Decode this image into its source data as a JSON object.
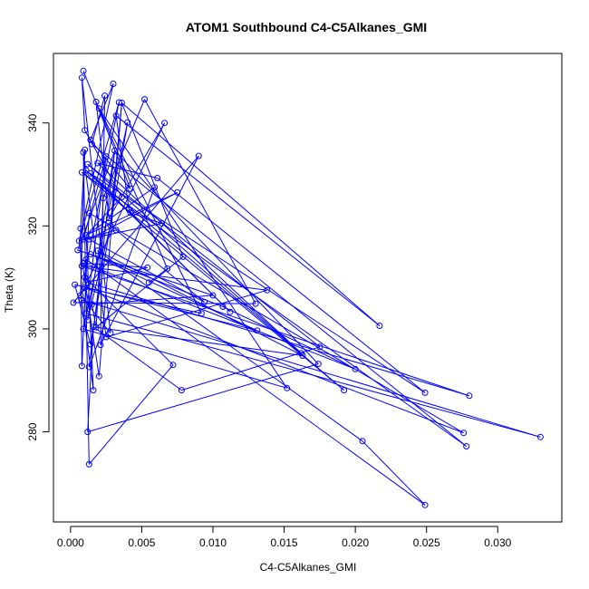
{
  "chart_data": {
    "type": "line",
    "title": "ATOM1 Southbound C4-C5Alkanes_GMI",
    "xlabel": "C4-C5Alkanes_GMI",
    "ylabel": "Theta (K)",
    "xlim": [
      -0.0012,
      0.0345
    ],
    "ylim": [
      262.5,
      353.5
    ],
    "xticks": [
      0.0,
      0.005,
      0.01,
      0.015,
      0.02,
      0.025,
      0.03
    ],
    "xtick_labels": [
      "0.000",
      "0.005",
      "0.010",
      "0.015",
      "0.020",
      "0.025",
      "0.030"
    ],
    "yticks": [
      280,
      300,
      320,
      340
    ],
    "ytick_labels": [
      "280",
      "300",
      "320",
      "340"
    ],
    "grid": false,
    "markers": "open circles",
    "series_color": "#0000ff",
    "x": [
      0.0009,
      0.0008,
      0.001,
      0.0012,
      0.0009,
      0.0015,
      0.0011,
      0.0008,
      0.002,
      0.0014,
      0.001,
      0.003,
      0.0013,
      0.0007,
      0.0011,
      0.0013,
      0.0009,
      0.0006,
      0.0028,
      0.0011,
      0.0008,
      0.0012,
      0.0009,
      0.0005,
      0.001,
      0.0014,
      0.0008,
      0.0012,
      0.0003,
      0.001,
      0.0007,
      0.0015,
      0.0002,
      0.0011,
      0.0018,
      0.0025,
      0.0014,
      0.0009,
      0.0008,
      0.002,
      0.0013,
      0.0016,
      0.0012,
      0.0013,
      0.0016,
      0.0021,
      0.0028,
      0.0036,
      0.0034,
      0.004,
      0.0052,
      0.0066,
      0.0042,
      0.0031,
      0.0024,
      0.0018,
      0.0032,
      0.0054,
      0.0061,
      0.0042,
      0.0027,
      0.0032,
      0.0019,
      0.0014,
      0.0025,
      0.0023,
      0.0019,
      0.0036,
      0.0041,
      0.0059,
      0.0075,
      0.0064,
      0.0078,
      0.009,
      0.0092,
      0.0072,
      0.0079,
      0.0068,
      0.0055,
      0.01,
      0.0107,
      0.0112,
      0.0138,
      0.013,
      0.0175,
      0.0163,
      0.02,
      0.0217,
      0.0249,
      0.028,
      0.033,
      0.0174,
      0.0162,
      0.0131,
      0.0152,
      0.0192,
      0.0276,
      0.0205,
      0.0249,
      0.0278,
      0.0094
    ],
    "y": [
      350.1,
      348.8,
      338.6,
      332.0,
      334.3,
      335.9,
      330.8,
      330.4,
      342.8,
      336.7,
      334.8,
      347.6,
      322.5,
      319.5,
      318.2,
      317.4,
      317.4,
      317.1,
      320.1,
      313.5,
      312.2,
      309.0,
      312.8,
      315.3,
      308.0,
      314.5,
      305.6,
      301.7,
      308.6,
      310.0,
      306.5,
      304.8,
      305.1,
      303.0,
      300.3,
      298.4,
      297.0,
      300.0,
      292.8,
      290.8,
      292.6,
      288.1,
      280.0,
      273.7,
      300.4,
      296.9,
      299.2,
      343.9,
      344.0,
      340.1,
      344.6,
      340.0,
      327.2,
      334.6,
      345.3,
      344.1,
      341.4,
      311.9,
      329.3,
      322.6,
      321.5,
      319.2,
      332.2,
      330.2,
      333.5,
      325.4,
      315.2,
      325.6,
      323.2,
      327.5,
      326.5,
      320.5,
      288.1,
      333.6,
      303.0,
      293.0,
      314.0,
      311.7,
      309.0,
      306.5,
      304.3,
      303.3,
      307.5,
      304.9,
      296.5,
      294.8,
      292.2,
      300.6,
      287.6,
      287.0,
      279.0,
      293.2,
      295.3,
      299.7,
      288.5,
      288.1,
      279.8,
      278.2,
      265.8,
      277.2,
      305.2
    ],
    "path_segments": [
      [
        0,
        52
      ],
      [
        52,
        9
      ],
      [
        9,
        11
      ],
      [
        11,
        17
      ],
      [
        17,
        39
      ],
      [
        39,
        47
      ],
      [
        47,
        18
      ],
      [
        18,
        27
      ],
      [
        27,
        53
      ],
      [
        53,
        23
      ],
      [
        23,
        79
      ],
      [
        79,
        31
      ],
      [
        31,
        34
      ],
      [
        34,
        85
      ],
      [
        85,
        66
      ],
      [
        66,
        97
      ],
      [
        97,
        98
      ],
      [
        98,
        19
      ],
      [
        19,
        29
      ],
      [
        29,
        75
      ],
      [
        75,
        43
      ],
      [
        43,
        4
      ],
      [
        4,
        35
      ],
      [
        35,
        82
      ],
      [
        82,
        20
      ],
      [
        20,
        89
      ],
      [
        89,
        21
      ],
      [
        21,
        57
      ],
      [
        57,
        22
      ],
      [
        22,
        86
      ],
      [
        86,
        80
      ],
      [
        80,
        25
      ],
      [
        25,
        93
      ],
      [
        93,
        28
      ],
      [
        28,
        36
      ],
      [
        36,
        49
      ],
      [
        49,
        37
      ],
      [
        37,
        94
      ],
      [
        94,
        8
      ],
      [
        8,
        74
      ],
      [
        74,
        24
      ],
      [
        24,
        96
      ],
      [
        96,
        12
      ],
      [
        12,
        38
      ],
      [
        38,
        13
      ],
      [
        13,
        10
      ],
      [
        10,
        30
      ],
      [
        30,
        46
      ],
      [
        46,
        1
      ],
      [
        1,
        2
      ],
      [
        2,
        67
      ],
      [
        67,
        14
      ],
      [
        14,
        70
      ],
      [
        70,
        15
      ],
      [
        15,
        100
      ],
      [
        100,
        61
      ],
      [
        61,
        16
      ],
      [
        16,
        64
      ],
      [
        64,
        33
      ],
      [
        33,
        90
      ],
      [
        90,
        26
      ],
      [
        26,
        41
      ],
      [
        41,
        14
      ],
      [
        14,
        69
      ],
      [
        69,
        40
      ],
      [
        40,
        53
      ],
      [
        53,
        91
      ],
      [
        91,
        42
      ],
      [
        42,
        44
      ],
      [
        44,
        72
      ],
      [
        72,
        84
      ],
      [
        84,
        3
      ],
      [
        3,
        92
      ],
      [
        92,
        62
      ],
      [
        62,
        58
      ],
      [
        58,
        88
      ],
      [
        88,
        63
      ],
      [
        63,
        81
      ],
      [
        81,
        6
      ],
      [
        6,
        95
      ],
      [
        95,
        7
      ],
      [
        7,
        99
      ],
      [
        99,
        5
      ],
      [
        5,
        54
      ],
      [
        54,
        45
      ],
      [
        45,
        73
      ],
      [
        73,
        32
      ],
      [
        32,
        83
      ],
      [
        83,
        50
      ],
      [
        50,
        65
      ],
      [
        65,
        34
      ],
      [
        34,
        76
      ],
      [
        76,
        47
      ],
      [
        47,
        87
      ],
      [
        87,
        56
      ],
      [
        56,
        68
      ],
      [
        68,
        59
      ],
      [
        59,
        71
      ],
      [
        71,
        17
      ],
      [
        17,
        48
      ],
      [
        48,
        30
      ],
      [
        30,
        51
      ],
      [
        51,
        60
      ],
      [
        60,
        55
      ],
      [
        55,
        77
      ],
      [
        77,
        78
      ]
    ]
  }
}
